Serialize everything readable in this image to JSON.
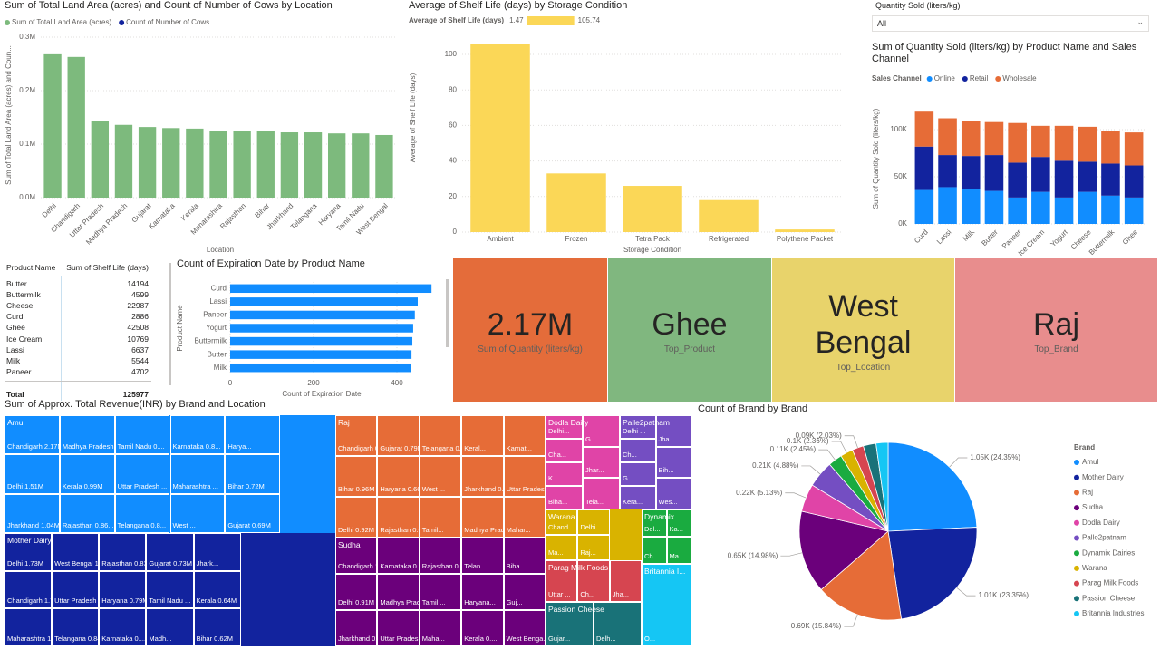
{
  "slicer": {
    "title": "Quantity Sold (liters/kg)",
    "value": "All"
  },
  "table": {
    "columns": [
      "Product Name",
      "Sum of Shelf Life (days)"
    ],
    "rows": [
      [
        "Butter",
        14194
      ],
      [
        "Buttermilk",
        4599
      ],
      [
        "Cheese",
        22987
      ],
      [
        "Curd",
        2886
      ],
      [
        "Ghee",
        42508
      ],
      [
        "Ice Cream",
        10769
      ],
      [
        "Lassi",
        6637
      ],
      [
        "Milk",
        5544
      ],
      [
        "Paneer",
        4702
      ]
    ],
    "total": [
      "Total",
      125977
    ]
  },
  "cards": [
    {
      "value": "2.17M",
      "label": "Sum of Quantity (liters/kg)",
      "color": "#e46c3a"
    },
    {
      "value": "Ghee",
      "label": "Top_Product",
      "color": "#80b77f"
    },
    {
      "value": "West Bengal",
      "label": "Top_Location",
      "color": "#e8d36b"
    },
    {
      "value": "Raj",
      "label": "Top_Brand",
      "color": "#e88d8d"
    }
  ],
  "chart_data": [
    {
      "type": "bar",
      "title": "Sum of Total Land Area (acres) and Count of Number of Cows by Location",
      "x_label": "Location",
      "y_label": "Sum of Total Land Area (acres) and Coun...",
      "categories": [
        "Delhi",
        "Chandigarh",
        "Uttar Pradesh",
        "Madhya Pradesh",
        "Gujarat",
        "Karnataka",
        "Kerala",
        "Maharashtra",
        "Rajasthan",
        "Bihar",
        "Jharkhand",
        "Telangana",
        "Haryana",
        "Tamil Nadu",
        "West Bengal"
      ],
      "series": [
        {
          "name": "Sum of Total Land Area (acres)",
          "color": "#7dba7d",
          "values": [
            268000,
            263000,
            144000,
            136000,
            132000,
            130000,
            129000,
            124000,
            124000,
            124000,
            122000,
            122000,
            120000,
            120000,
            117000
          ]
        },
        {
          "name": "Count of Number of Cows",
          "color": "#12239e",
          "values": [
            null,
            null,
            null,
            null,
            null,
            null,
            null,
            null,
            null,
            null,
            null,
            null,
            null,
            null,
            null
          ]
        }
      ],
      "ylim": [
        0,
        300000
      ],
      "yticks": [
        {
          "value": 0,
          "label": "0.0M"
        },
        {
          "value": 100000,
          "label": "0.1M"
        },
        {
          "value": 200000,
          "label": "0.2M"
        },
        {
          "value": 300000,
          "label": "0.3M"
        }
      ],
      "grid": true
    },
    {
      "type": "bar",
      "title": "Average of Shelf Life (days) by Storage Condition",
      "x_label": "Storage Condition",
      "y_label": "Average of Shelf Life (days)",
      "legend_title": "Average of Shelf Life (days)",
      "color_scale": [
        1.47,
        105.74
      ],
      "categories": [
        "Ambient",
        "Frozen",
        "Tetra Pack",
        "Refrigerated",
        "Polythene Packet"
      ],
      "values": [
        105.74,
        33,
        26,
        18,
        1.47
      ],
      "color": "#fbd757",
      "ylim": [
        0,
        110
      ],
      "yticks": [
        0,
        20,
        40,
        60,
        80,
        100
      ],
      "grid": true
    },
    {
      "type": "stacked_bar",
      "title": "Sum of Quantity Sold (liters/kg) by Product Name and Sales Channel",
      "y_label": "Sum of Quantity Sold (liters/kg)",
      "legend_title": "Sales Channel",
      "categories": [
        "Curd",
        "Lassi",
        "Milk",
        "Butter",
        "Paneer",
        "Ice Cream",
        "Yogurt",
        "Cheese",
        "Buttermilk",
        "Ghee"
      ],
      "series": [
        {
          "name": "Online",
          "color": "#118dff",
          "values": [
            36000,
            39000,
            37000,
            35000,
            28000,
            34000,
            28000,
            34000,
            30000,
            28000
          ]
        },
        {
          "name": "Retail",
          "color": "#12239e",
          "values": [
            46000,
            34000,
            35000,
            38000,
            37000,
            37000,
            39000,
            32000,
            34000,
            34000
          ]
        },
        {
          "name": "Wholesale",
          "color": "#e66c37",
          "values": [
            38000,
            39000,
            37000,
            35000,
            42000,
            33000,
            37000,
            37000,
            35000,
            35000
          ]
        }
      ],
      "ylim": [
        0,
        125000
      ],
      "yticks": [
        {
          "value": 0,
          "label": "0K"
        },
        {
          "value": 50000,
          "label": "50K"
        },
        {
          "value": 100000,
          "label": "100K"
        }
      ],
      "grid": true
    },
    {
      "type": "hbar",
      "title": "Count of Expiration Date by Product Name",
      "x_label": "Count of Expiration Date",
      "y_label": "Product Name",
      "categories": [
        "Curd",
        "Lassi",
        "Paneer",
        "Yogurt",
        "Buttermilk",
        "Butter",
        "Milk"
      ],
      "values": [
        483,
        450,
        443,
        439,
        437,
        435,
        433
      ],
      "color": "#118dff",
      "xlim": [
        0,
        500
      ],
      "xticks": [
        0,
        200,
        400
      ],
      "grid": true
    },
    {
      "type": "treemap",
      "title": "Sum of Approx. Total Revenue(INR) by Brand and Location",
      "groups": [
        {
          "name": "Amul",
          "color": "#118dff",
          "cells": [
            "Chandigarh 2.17M",
            "Delhi 1.51M",
            "Jharkhand 1.04M",
            "Madhya Pradesh ...",
            "Kerala 0.99M",
            "Rajasthan 0.86...",
            "Tamil Nadu 0....",
            "Uttar Pradesh ...",
            "Telangana 0.8...",
            "Karnataka 0.8...",
            "Maharashtra ...",
            "West ...",
            "Harya...",
            "Bihar 0.72M",
            "Gujarat 0.69M"
          ]
        },
        {
          "name": "Mother Dairy",
          "color": "#12239e",
          "cells": [
            "Delhi 1.73M",
            "Chandigarh 1.70M",
            "Maharashtra 1.14M",
            "West Bengal 1.02M",
            "Uttar Pradesh 0.98M",
            "Telangana 0.84...",
            "Rajasthan 0.83M",
            "Haryana 0.79M",
            "Karnataka 0....",
            "Gujarat 0.73M",
            "Tamil Nadu ...",
            "Madh...",
            "Jhark...",
            "Kerala 0.64M",
            "Bihar 0.62M"
          ]
        },
        {
          "name": "Raj",
          "color": "#e66c37",
          "cells": [
            "Chandigarh 0.9...",
            "Bihar 0.96M",
            "Delhi 0.92M",
            "Gujarat 0.79M",
            "Haryana 0.66M",
            "Rajasthan 0.64M",
            "Telangana 0.63M",
            "West ...",
            "Tamil...",
            "Keral...",
            "Jharkhand 0....",
            "Madhya Prad...",
            "Karnat...",
            "Uttar Prades...",
            "Mahar..."
          ]
        },
        {
          "name": "Sudha",
          "color": "#6b007b",
          "cells": [
            "Chandigarh 1.11M",
            "Delhi 0.91M",
            "Jharkhand 0.63M",
            "Karnataka 0.6...",
            "Madhya Prad...",
            "Uttar Pradesh...",
            "Rajasthan 0.5...",
            "Tamil ...",
            "Maha...",
            "Telan...",
            "Haryana...",
            "Kerala 0....",
            "Biha...",
            "Guj...",
            "West Benga..."
          ]
        },
        {
          "name": "Dodla Dairy",
          "color": "#e044a7",
          "cells": [
            "Delhi...",
            "Cha...",
            "K...",
            "Biha...",
            "G...",
            "Jhar...",
            "Tela..."
          ]
        },
        {
          "name": "Palle2patnam",
          "color": "#744ec2",
          "cells": [
            "Delhi ...",
            "Ch...",
            "G...",
            "Kera...",
            "Jha...",
            "Bih...",
            "Wes..."
          ]
        },
        {
          "name": "Warana",
          "color": "#d9b300",
          "cells": [
            "Chand...",
            "Ma...",
            "Delhi ...",
            "Raj..."
          ]
        },
        {
          "name": "Dynamix ...",
          "color": "#1aab40",
          "cells": [
            "Del...",
            "Ch...",
            "Ka...",
            "Ma..."
          ]
        },
        {
          "name": "Parag Milk Foods",
          "color": "#d64550",
          "cells": [
            "Uttar ...",
            "Ch...",
            "Jha..."
          ]
        },
        {
          "name": "Passion Cheese",
          "color": "#197278",
          "cells": [
            "Gujar...",
            "Delh..."
          ]
        },
        {
          "name": "Britannia I...",
          "color": "#15c6f4",
          "cells": [
            "O..."
          ]
        }
      ]
    },
    {
      "type": "pie",
      "title": "Count of Brand by Brand",
      "legend_title": "Brand",
      "categories": [
        "Amul",
        "Mother Dairy",
        "Raj",
        "Sudha",
        "Dodla Dairy",
        "Palle2patnam",
        "Dynamix Dairies",
        "Warana",
        "Parag Milk Foods",
        "Passion Cheese",
        "Britannia Industries"
      ],
      "colors": [
        "#118dff",
        "#12239e",
        "#e66c37",
        "#6b007b",
        "#e044a7",
        "#744ec2",
        "#1aab40",
        "#d9b300",
        "#d64550",
        "#197278",
        "#15c6f4"
      ],
      "values": [
        1050,
        1010,
        690,
        650,
        220,
        210,
        110,
        100,
        90,
        100,
        95
      ],
      "value_labels": [
        "1.05K (24.35%)",
        "1.01K (23.35%)",
        "0.69K (15.84%)",
        "0.65K (14.98%)",
        "0.22K (5.13%)",
        "0.21K (4.88%)",
        "0.11K (2.45%)",
        "0.1K (2.36%)",
        "0.09K (2.03%)",
        null,
        null
      ]
    }
  ]
}
